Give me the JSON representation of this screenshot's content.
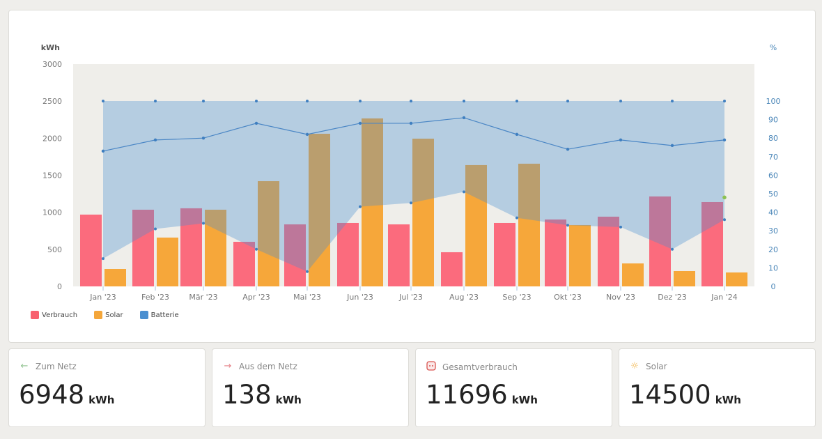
{
  "chart_data": {
    "type": "bar",
    "left_axis_label": "kWh",
    "right_axis_label": "%",
    "categories": [
      "Jan '23",
      "Feb '23",
      "Mär '23",
      "Apr '23",
      "Mai '23",
      "Jun '23",
      "Jul '23",
      "Aug '23",
      "Sep '23",
      "Okt '23",
      "Nov '23",
      "Dez '23",
      "Jan '24"
    ],
    "ylim": [
      0,
      3000
    ],
    "yticks": [
      "0",
      "500",
      "1000",
      "1500",
      "2000",
      "2500",
      "3000"
    ],
    "y2lim": [
      0,
      100
    ],
    "y2ticks": [
      "0",
      "10",
      "20",
      "30",
      "40",
      "50",
      "60",
      "70",
      "80",
      "90",
      "100"
    ],
    "series": [
      {
        "name": "Verbrauch",
        "type": "bar",
        "color": "#fb6b7d",
        "values": [
          969,
          1035,
          1054,
          602,
          837,
          856,
          837,
          461,
          856,
          903,
          941,
          1214,
          1138
        ]
      },
      {
        "name": "Solar",
        "type": "bar",
        "color": "#f6a73a",
        "values": [
          235,
          659,
          1035,
          1420,
          2060,
          2267,
          1994,
          1637,
          1656,
          828,
          310,
          207,
          188
        ]
      },
      {
        "name": "Batterie",
        "type": "range-area",
        "axis": "right",
        "color": "#4a90d2",
        "max": [
          100,
          100,
          100,
          100,
          100,
          100,
          100,
          100,
          100,
          100,
          100,
          100,
          100
        ],
        "avg": [
          73,
          79,
          80,
          88,
          82,
          88,
          88,
          91,
          82,
          74,
          79,
          76,
          79
        ],
        "min": [
          15,
          31,
          34,
          20,
          8,
          43,
          45,
          51,
          37,
          33,
          32,
          20,
          36
        ],
        "current": 48
      }
    ],
    "legend_position": "bottom-left"
  },
  "stats": [
    {
      "label": "Zum Netz",
      "value": "6948",
      "unit": "kWh",
      "icon": "arrow-left-icon",
      "color": "#8fc28f"
    },
    {
      "label": "Aus dem Netz",
      "value": "138",
      "unit": "kWh",
      "icon": "arrow-right-icon",
      "color": "#e57f86"
    },
    {
      "label": "Gesamtverbrauch",
      "value": "11696",
      "unit": "kWh",
      "icon": "power-socket-icon",
      "color": "#d9534f"
    },
    {
      "label": "Solar",
      "value": "14500",
      "unit": "kWh",
      "icon": "sun-icon",
      "color": "#f0b040"
    }
  ]
}
